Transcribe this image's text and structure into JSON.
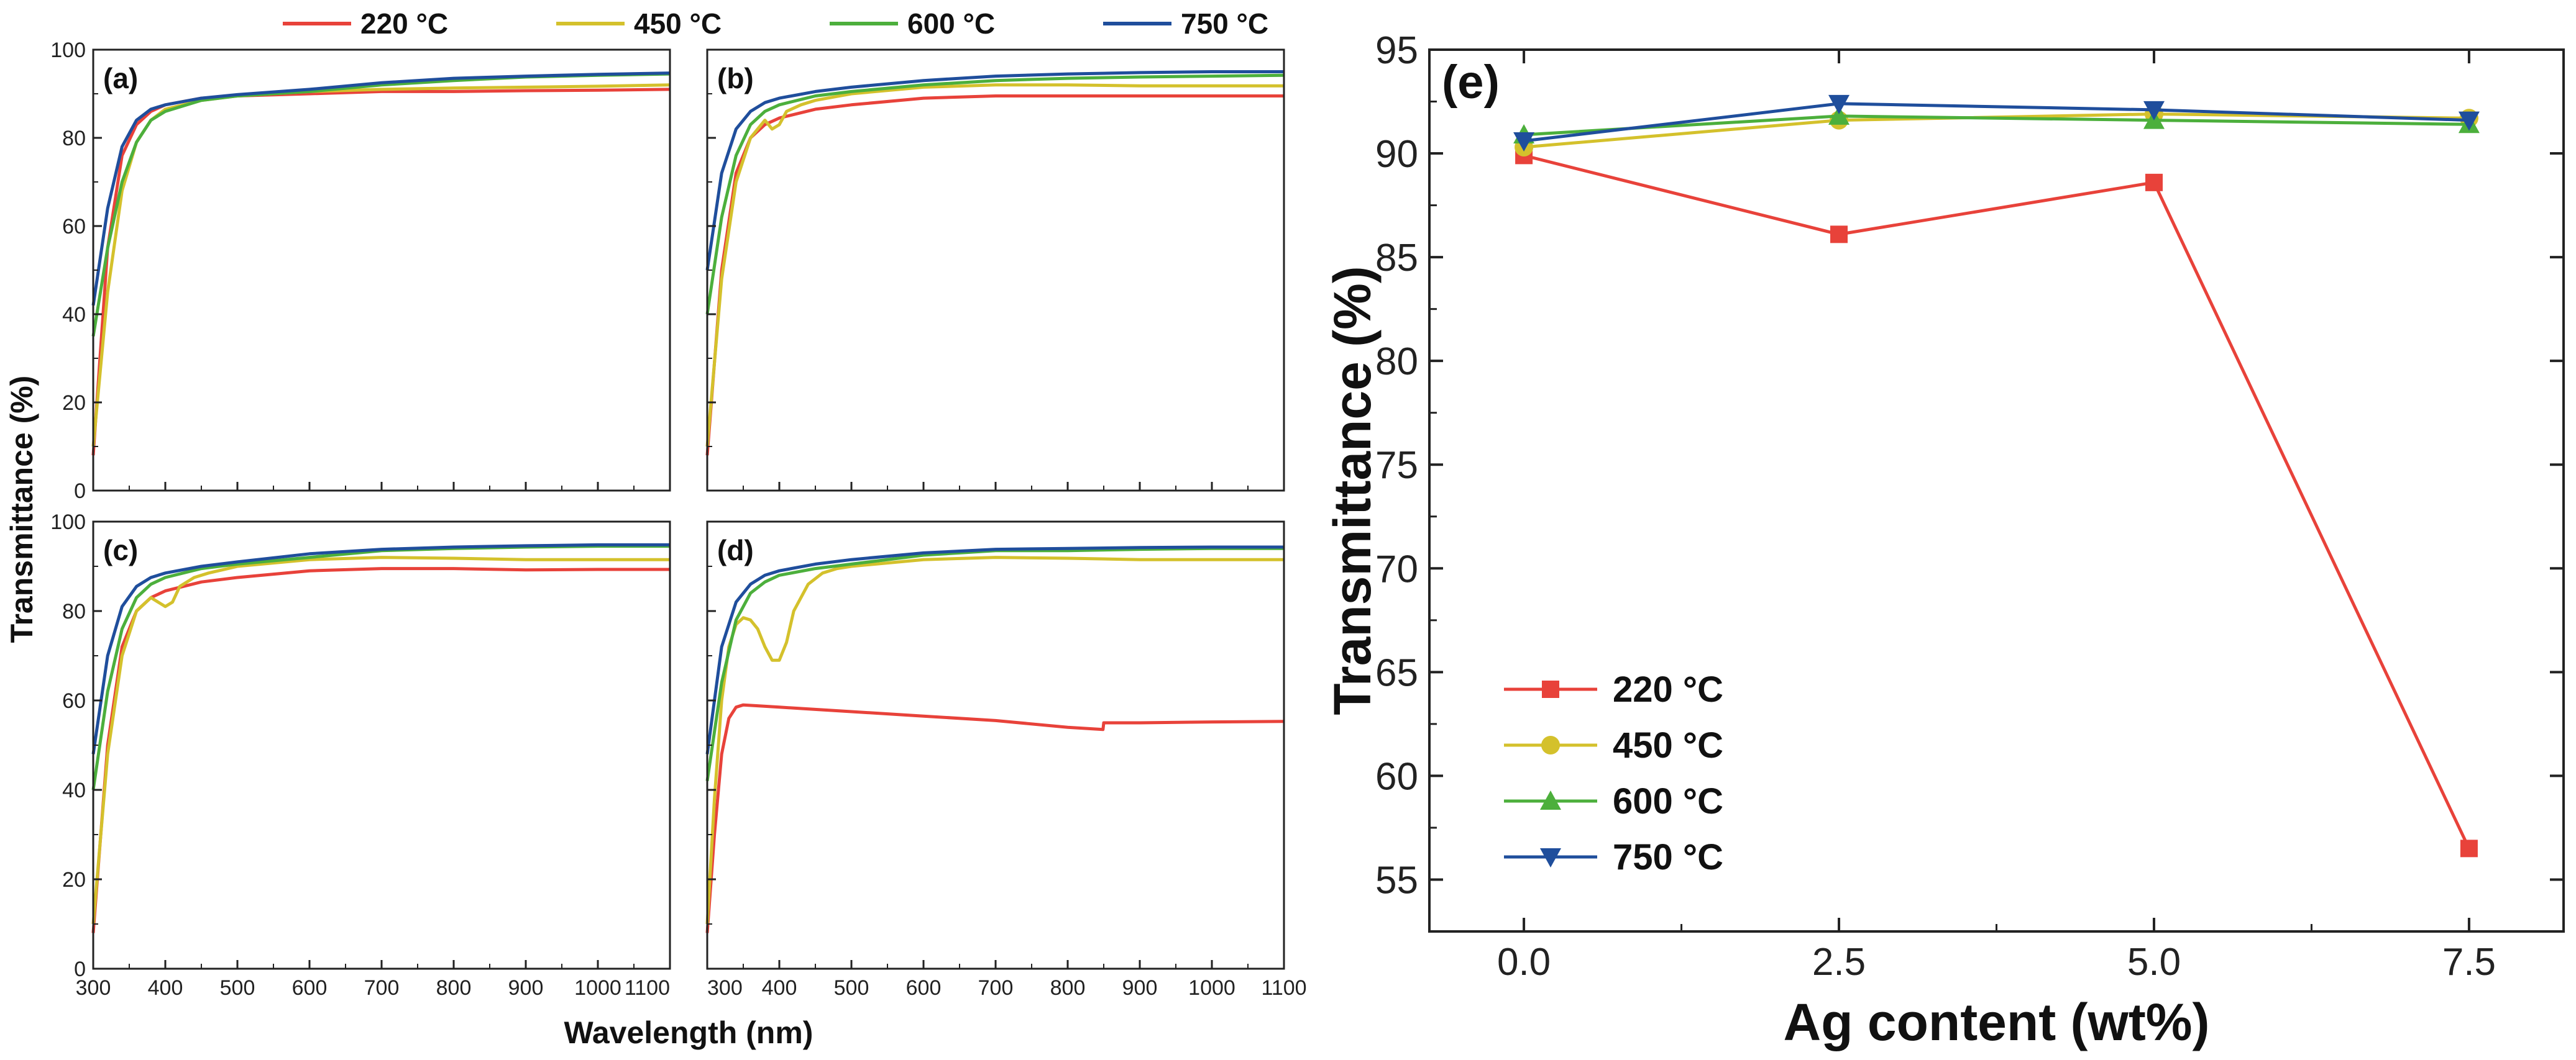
{
  "chart_data": [
    {
      "type": "line",
      "panel_label": "(a)",
      "xlabel": "Wavelength (nm)",
      "ylabel": "Transmittance (%)",
      "xlim": [
        300,
        1100
      ],
      "ylim": [
        0,
        100
      ],
      "xticks": [
        300,
        400,
        500,
        600,
        700,
        800,
        900,
        1000,
        1100
      ],
      "yticks": [
        0,
        20,
        40,
        60,
        80,
        100
      ],
      "series": [
        {
          "name": "220 °C",
          "color": "#e8423a",
          "x": [
            300,
            320,
            340,
            360,
            380,
            400,
            450,
            500,
            600,
            700,
            800,
            900,
            1000,
            1100
          ],
          "y": [
            8,
            55,
            76,
            83,
            86,
            87.5,
            89,
            89.5,
            90,
            90.5,
            90.5,
            90.7,
            90.8,
            91
          ]
        },
        {
          "name": "450 °C",
          "color": "#d4c12c",
          "x": [
            300,
            320,
            340,
            360,
            380,
            400,
            450,
            500,
            600,
            700,
            800,
            900,
            1000,
            1100
          ],
          "y": [
            10,
            45,
            68,
            79,
            84,
            86.5,
            88.5,
            89.5,
            90.5,
            91,
            91.3,
            91.5,
            91.7,
            92
          ]
        },
        {
          "name": "600 °C",
          "color": "#4caf3c",
          "x": [
            300,
            320,
            340,
            360,
            380,
            400,
            450,
            500,
            600,
            700,
            800,
            900,
            1000,
            1100
          ],
          "y": [
            35,
            55,
            70,
            79,
            84,
            86,
            88.5,
            89.5,
            90.5,
            92,
            93,
            93.8,
            94.2,
            94.5
          ]
        },
        {
          "name": "750 °C",
          "color": "#1f4e9c",
          "x": [
            300,
            320,
            340,
            360,
            380,
            400,
            450,
            500,
            600,
            700,
            800,
            900,
            1000,
            1100
          ],
          "y": [
            42,
            64,
            78,
            84,
            86.5,
            87.5,
            89,
            89.8,
            91,
            92.5,
            93.5,
            94,
            94.4,
            94.7
          ]
        }
      ]
    },
    {
      "type": "line",
      "panel_label": "(b)",
      "xlim": [
        300,
        1100
      ],
      "ylim": [
        0,
        100
      ],
      "xticks": [
        300,
        400,
        500,
        600,
        700,
        800,
        900,
        1000,
        1100
      ],
      "series": [
        {
          "name": "220 °C",
          "color": "#e8423a",
          "x": [
            300,
            320,
            340,
            360,
            380,
            400,
            450,
            500,
            600,
            700,
            800,
            900,
            1000,
            1100
          ],
          "y": [
            8,
            50,
            72,
            80,
            83,
            84.5,
            86.5,
            87.5,
            89,
            89.5,
            89.5,
            89.5,
            89.5,
            89.5
          ]
        },
        {
          "name": "450 °C",
          "color": "#d4c12c",
          "x": [
            300,
            320,
            340,
            360,
            380,
            390,
            400,
            410,
            430,
            450,
            500,
            600,
            700,
            800,
            900,
            1000,
            1100
          ],
          "y": [
            10,
            48,
            70,
            80,
            84,
            82,
            83,
            86,
            87.5,
            88.5,
            90,
            91.5,
            92,
            92,
            91.8,
            91.8,
            91.8
          ]
        },
        {
          "name": "600 °C",
          "color": "#4caf3c",
          "x": [
            300,
            320,
            340,
            360,
            380,
            400,
            450,
            500,
            600,
            700,
            800,
            900,
            1000,
            1100
          ],
          "y": [
            40,
            62,
            76,
            83,
            86,
            87.5,
            89.5,
            90.5,
            92,
            93,
            93.5,
            93.8,
            94,
            94.2
          ]
        },
        {
          "name": "750 °C",
          "color": "#1f4e9c",
          "x": [
            300,
            320,
            340,
            360,
            380,
            400,
            450,
            500,
            600,
            700,
            800,
            900,
            1000,
            1100
          ],
          "y": [
            50,
            72,
            82,
            86,
            88,
            89,
            90.5,
            91.5,
            93,
            94,
            94.5,
            94.8,
            95,
            95
          ]
        }
      ]
    },
    {
      "type": "line",
      "panel_label": "(c)",
      "xlim": [
        300,
        1100
      ],
      "ylim": [
        0,
        100
      ],
      "xticks": [
        300,
        400,
        500,
        600,
        700,
        800,
        900,
        1000,
        1100
      ],
      "series": [
        {
          "name": "220 °C",
          "color": "#e8423a",
          "x": [
            300,
            320,
            340,
            360,
            380,
            400,
            450,
            500,
            600,
            700,
            800,
            900,
            1000,
            1100
          ],
          "y": [
            8,
            50,
            72,
            80,
            83,
            84.5,
            86.5,
            87.5,
            89,
            89.5,
            89.5,
            89.2,
            89.3,
            89.3
          ]
        },
        {
          "name": "450 °C",
          "color": "#d4c12c",
          "x": [
            300,
            320,
            340,
            360,
            380,
            390,
            400,
            410,
            420,
            440,
            460,
            500,
            600,
            700,
            800,
            900,
            1000,
            1100
          ],
          "y": [
            10,
            48,
            70,
            80,
            83,
            82,
            81,
            82,
            85.5,
            87.5,
            88.5,
            90,
            91.5,
            92,
            91.8,
            91.5,
            91.5,
            91.5
          ]
        },
        {
          "name": "600 °C",
          "color": "#4caf3c",
          "x": [
            300,
            320,
            340,
            360,
            380,
            400,
            450,
            500,
            600,
            700,
            800,
            900,
            1000,
            1100
          ],
          "y": [
            40,
            62,
            76,
            83,
            86,
            87.5,
            89.5,
            90.5,
            92,
            93.5,
            94,
            94.3,
            94.5,
            94.5
          ]
        },
        {
          "name": "750 °C",
          "color": "#1f4e9c",
          "x": [
            300,
            320,
            340,
            360,
            380,
            400,
            450,
            500,
            600,
            700,
            800,
            900,
            1000,
            1100
          ],
          "y": [
            48,
            70,
            81,
            85.5,
            87.5,
            88.5,
            90,
            91,
            92.8,
            93.8,
            94.3,
            94.6,
            94.8,
            94.8
          ]
        }
      ]
    },
    {
      "type": "line",
      "panel_label": "(d)",
      "xlim": [
        300,
        1100
      ],
      "ylim": [
        0,
        100
      ],
      "xticks": [
        300,
        400,
        500,
        600,
        700,
        800,
        900,
        1000,
        1100
      ],
      "series": [
        {
          "name": "220 °C",
          "color": "#e8423a",
          "x": [
            300,
            310,
            320,
            330,
            340,
            350,
            370,
            400,
            500,
            600,
            700,
            800,
            849,
            850,
            900,
            1000,
            1100
          ],
          "y": [
            8,
            30,
            48,
            56,
            58.5,
            59,
            58.8,
            58.5,
            57.5,
            56.5,
            55.5,
            54,
            53.5,
            55,
            55,
            55.2,
            55.3
          ]
        },
        {
          "name": "450 °C",
          "color": "#d4c12c",
          "x": [
            300,
            310,
            320,
            330,
            340,
            350,
            360,
            370,
            380,
            390,
            400,
            410,
            420,
            440,
            460,
            480,
            500,
            600,
            700,
            800,
            900,
            1000,
            1100
          ],
          "y": [
            10,
            38,
            60,
            72,
            77,
            78.5,
            78,
            76,
            72,
            69,
            69,
            73,
            80,
            86,
            88.5,
            89.5,
            90,
            91.5,
            92,
            91.8,
            91.5,
            91.5,
            91.5
          ]
        },
        {
          "name": "600 °C",
          "color": "#4caf3c",
          "x": [
            300,
            320,
            340,
            360,
            380,
            400,
            450,
            500,
            600,
            700,
            800,
            900,
            1000,
            1100
          ],
          "y": [
            42,
            64,
            78,
            84,
            86.5,
            88,
            89.5,
            90.5,
            92.5,
            93.5,
            93.5,
            93.8,
            94,
            94
          ]
        },
        {
          "name": "750 °C",
          "color": "#1f4e9c",
          "x": [
            300,
            320,
            340,
            360,
            380,
            400,
            450,
            500,
            600,
            700,
            800,
            900,
            1000,
            1100
          ],
          "y": [
            48,
            72,
            82,
            86,
            88,
            89,
            90.5,
            91.5,
            93,
            93.8,
            94,
            94.2,
            94.3,
            94.3
          ]
        }
      ]
    },
    {
      "type": "line",
      "panel_label": "(e)",
      "xlabel": "Ag content (wt%)",
      "ylabel": "Transmittance (%)",
      "xlim": [
        -0.75,
        8.25
      ],
      "ylim": [
        52.5,
        95
      ],
      "xticks": [
        0.0,
        2.5,
        5.0,
        7.5
      ],
      "yticks": [
        55,
        60,
        65,
        70,
        75,
        80,
        85,
        90,
        95
      ],
      "categories": [
        "0.0",
        "2.5",
        "5.0",
        "7.5"
      ],
      "series": [
        {
          "name": "220 °C",
          "color": "#e8423a",
          "marker": "square",
          "x": [
            0.0,
            2.5,
            5.0,
            7.5
          ],
          "y": [
            89.9,
            86.1,
            88.6,
            56.5
          ]
        },
        {
          "name": "450 °C",
          "color": "#d4c12c",
          "marker": "circle",
          "x": [
            0.0,
            2.5,
            5.0,
            7.5
          ],
          "y": [
            90.3,
            91.6,
            91.9,
            91.7
          ]
        },
        {
          "name": "600 °C",
          "color": "#4caf3c",
          "marker": "triangle-up",
          "x": [
            0.0,
            2.5,
            5.0,
            7.5
          ],
          "y": [
            90.9,
            91.8,
            91.6,
            91.4
          ]
        },
        {
          "name": "750 °C",
          "color": "#1f4e9c",
          "marker": "triangle-down",
          "x": [
            0.0,
            2.5,
            5.0,
            7.5
          ],
          "y": [
            90.6,
            92.4,
            92.1,
            91.6
          ]
        }
      ]
    }
  ],
  "legend_top": [
    "220 °C",
    "450 °C",
    "600 °C",
    "750 °C"
  ],
  "legend_e": [
    "220 °C",
    "450 °C",
    "600 °C",
    "750 °C"
  ]
}
